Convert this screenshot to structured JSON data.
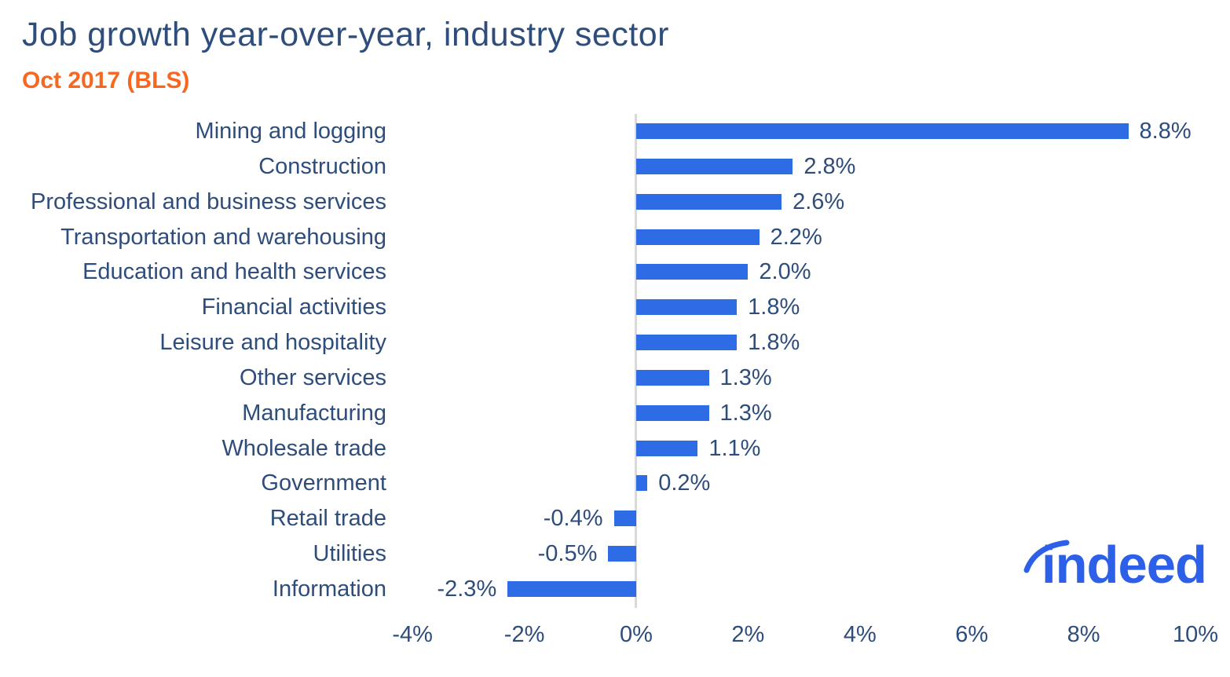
{
  "header": {
    "title": "Job growth year-over-year, industry sector",
    "subtitle": "Oct 2017 (BLS)"
  },
  "logo": {
    "text": "indeed"
  },
  "colors": {
    "bar": "#2d6ce5",
    "text_navy": "#2e4d7b",
    "subtitle_orange": "#f8671f",
    "axis_line_gray": "#d9d9d9",
    "logo_blue": "#2c60e8"
  },
  "chart_data": {
    "type": "bar",
    "orientation": "horizontal",
    "title": "Job growth year-over-year, industry sector",
    "subtitle": "Oct 2017 (BLS)",
    "categories": [
      "Mining and logging",
      "Construction",
      "Professional and business services",
      "Transportation and warehousing",
      "Education and health services",
      "Financial activities",
      "Leisure and hospitality",
      "Other services",
      "Manufacturing",
      "Wholesale trade",
      "Government",
      "Retail trade",
      "Utilities",
      "Information"
    ],
    "values": [
      8.8,
      2.8,
      2.6,
      2.2,
      2.0,
      1.8,
      1.8,
      1.3,
      1.3,
      1.1,
      0.2,
      -0.4,
      -0.5,
      -2.3
    ],
    "value_labels": [
      "8.8%",
      "2.8%",
      "2.6%",
      "2.2%",
      "2.0%",
      "1.8%",
      "1.8%",
      "1.3%",
      "1.3%",
      "1.1%",
      "0.2%",
      "-0.4%",
      "-0.5%",
      "-2.3%"
    ],
    "xlabel": "",
    "ylabel": "",
    "xlim": [
      -4,
      10
    ],
    "xticks": {
      "values": [
        -4,
        -2,
        0,
        2,
        4,
        6,
        8,
        10
      ],
      "labels": [
        "-4%",
        "-2%",
        "0%",
        "2%",
        "4%",
        "6%",
        "8%",
        "10%"
      ]
    },
    "grid": false,
    "legend": false,
    "value_label_position": "outside-end"
  }
}
